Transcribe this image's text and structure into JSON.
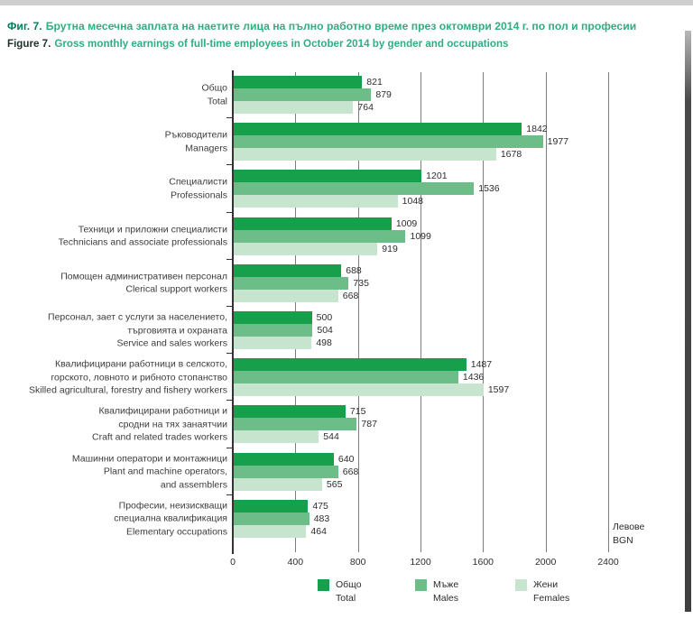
{
  "header": {
    "fig_label_bg": "Фиг. 7.",
    "title_bg": "Брутна месечна заплата на наетите лица на пълно работно време през октомври 2014 г. по пол и професии",
    "fig_label_en": "Figure 7.",
    "title_en": "Gross monthly earnings of full-time employees in October 2014 by gender and occupations"
  },
  "chart_data": {
    "type": "bar",
    "orientation": "horizontal",
    "xlim": [
      0,
      2400
    ],
    "x_ticks": [
      0,
      400,
      800,
      1200,
      1600,
      2000,
      2400
    ],
    "grid": true,
    "legend_position": "bottom-center",
    "unit_label_lines": [
      "Левове",
      "BGN"
    ],
    "series": [
      {
        "key": "total",
        "label_bg": "Общо",
        "label_en": "Total",
        "color": "#16a04c",
        "values": [
          821,
          1842,
          1201,
          1009,
          688,
          500,
          1487,
          715,
          640,
          475
        ]
      },
      {
        "key": "males",
        "label_bg": "Мъже",
        "label_en": "Males",
        "color": "#6cbd88",
        "values": [
          879,
          1977,
          1536,
          1099,
          735,
          504,
          1436,
          787,
          668,
          483
        ]
      },
      {
        "key": "females",
        "label_bg": "Жени",
        "label_en": "Females",
        "color": "#c7e4ce",
        "values": [
          764,
          1678,
          1048,
          919,
          668,
          498,
          1597,
          544,
          565,
          464
        ]
      }
    ],
    "categories": [
      {
        "bg_lines": [
          "Общо"
        ],
        "en_lines": [
          "Total"
        ]
      },
      {
        "bg_lines": [
          "Ръководители"
        ],
        "en_lines": [
          "Managers"
        ]
      },
      {
        "bg_lines": [
          "Специалисти"
        ],
        "en_lines": [
          "Professionals"
        ]
      },
      {
        "bg_lines": [
          "Техници и приложни специалисти"
        ],
        "en_lines": [
          "Technicians and associate professionals"
        ]
      },
      {
        "bg_lines": [
          "Помощен административен персонал"
        ],
        "en_lines": [
          "Clerical support workers"
        ]
      },
      {
        "bg_lines": [
          "Персонал, зает с услуги за населението,",
          "търговията и охраната"
        ],
        "en_lines": [
          "Service and sales workers"
        ]
      },
      {
        "bg_lines": [
          "Квалифицирани работници в селското,",
          "горското, ловното и рибното стопанство"
        ],
        "en_lines": [
          "Skilled agricultural, forestry and fishery workers"
        ]
      },
      {
        "bg_lines": [
          "Квалифицирани работници и",
          "сродни на тях занаятчии"
        ],
        "en_lines": [
          "Craft and related trades workers"
        ]
      },
      {
        "bg_lines": [
          "Машинни оператори и монтажници"
        ],
        "en_lines": [
          "Plant and machine operators,",
          "and assemblers"
        ]
      },
      {
        "bg_lines": [
          "Професии, неизискващи",
          "специална квалификация"
        ],
        "en_lines": [
          "Elementary occupations"
        ]
      }
    ]
  }
}
